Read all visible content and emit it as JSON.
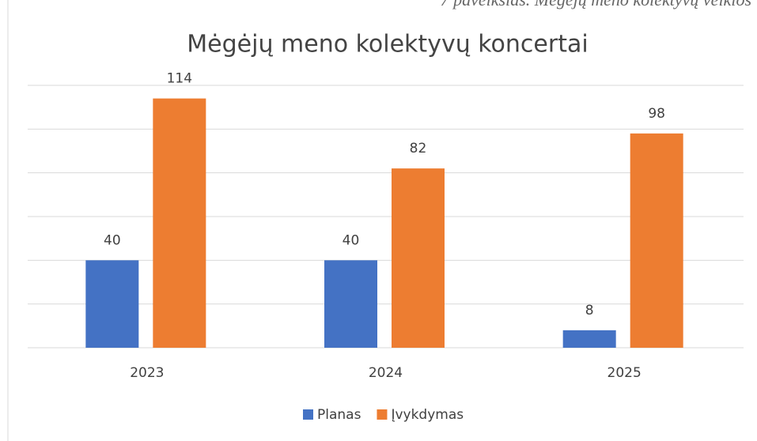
{
  "caption": "7 paveikslas. Mėgėjų meno kolektyvų veiklos",
  "chart_data": {
    "type": "bar",
    "title": "Mėgėjų meno kolektyvų koncertai",
    "categories": [
      "2023",
      "2024",
      "2025"
    ],
    "series": [
      {
        "name": "Planas",
        "color": "#4472c4",
        "values": [
          40,
          40,
          8
        ]
      },
      {
        "name": "Įvykdymas",
        "color": "#ed7d31",
        "values": [
          114,
          82,
          98
        ]
      }
    ],
    "ylim": [
      0,
      120
    ],
    "yticks": [
      0,
      20,
      40,
      60,
      80,
      100,
      120
    ],
    "grid": true,
    "legend": "bottom"
  }
}
